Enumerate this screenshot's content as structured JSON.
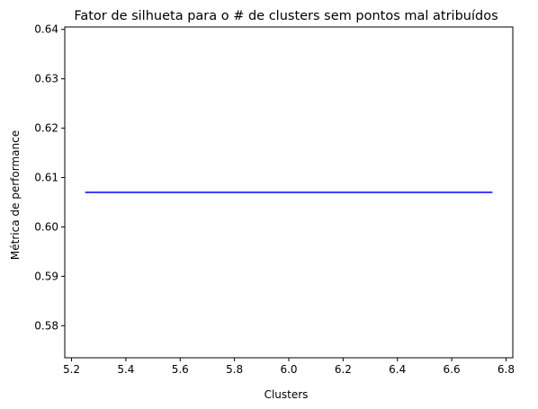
{
  "chart_data": {
    "type": "line",
    "title": "Fator de silhueta para o # de clusters sem pontos mal atribuídos",
    "xlabel": "Clusters",
    "ylabel": "Métrica de performance",
    "xlim": [
      5.175,
      6.825
    ],
    "ylim": [
      0.5735,
      0.6405
    ],
    "x_ticks": [
      5.2,
      5.4,
      5.6,
      5.8,
      6.0,
      6.2,
      6.4,
      6.6,
      6.8
    ],
    "x_tick_labels": [
      "5.2",
      "5.4",
      "5.6",
      "5.8",
      "6.0",
      "6.2",
      "6.4",
      "6.6",
      "6.8"
    ],
    "y_ticks": [
      0.58,
      0.59,
      0.6,
      0.61,
      0.62,
      0.63,
      0.64
    ],
    "y_tick_labels": [
      "0.58",
      "0.59",
      "0.60",
      "0.61",
      "0.62",
      "0.63",
      "0.64"
    ],
    "grid": false,
    "series": [
      {
        "color": "#0000ff",
        "x": [
          5.25,
          6.75
        ],
        "y": [
          0.607,
          0.607
        ]
      }
    ]
  }
}
